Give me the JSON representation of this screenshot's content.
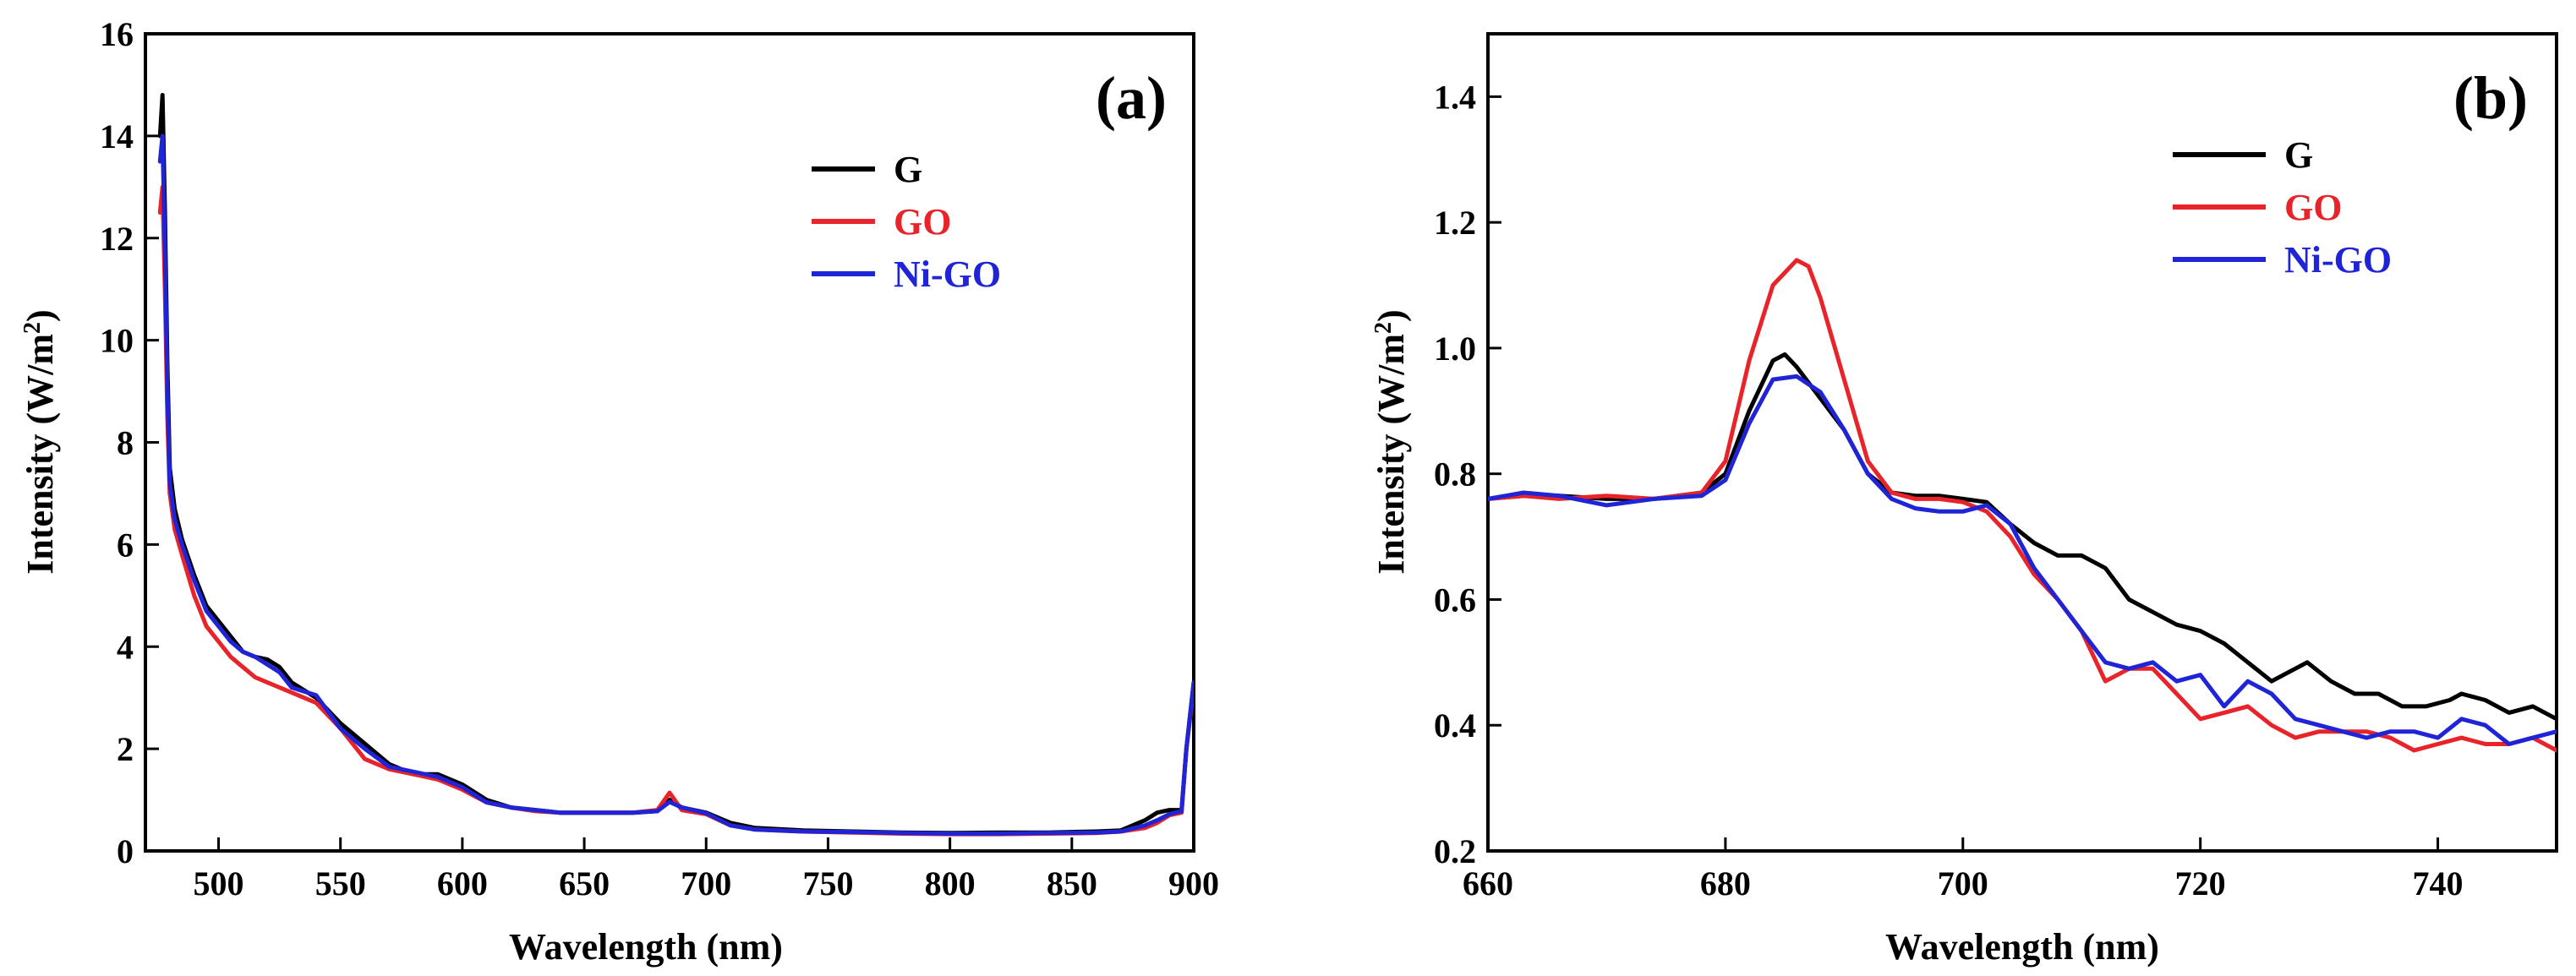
{
  "chart_data": [
    {
      "type": "line",
      "panel_label": "(a)",
      "xlabel": "Wavelength (nm)",
      "ylabel": "Intensity (W/m",
      "ylabel_sup": "2",
      "ylabel_close": ")",
      "xlim": [
        470,
        900
      ],
      "ylim": [
        0,
        16
      ],
      "xticks": [
        "500",
        "550",
        "600",
        "650",
        "700",
        "750",
        "800",
        "850",
        "900"
      ],
      "yticks": [
        "0",
        "2",
        "4",
        "6",
        "8",
        "10",
        "12",
        "14",
        "16"
      ],
      "xtick_values": [
        500,
        550,
        600,
        650,
        700,
        750,
        800,
        850,
        900
      ],
      "ytick_values": [
        0,
        2,
        4,
        6,
        8,
        10,
        12,
        14,
        16
      ],
      "legend_position": "top-right",
      "series": [
        {
          "name": "G",
          "color": "#000000",
          "x": [
            476,
            477,
            478,
            479,
            480,
            482,
            485,
            490,
            495,
            500,
            505,
            510,
            515,
            520,
            525,
            530,
            540,
            550,
            560,
            570,
            580,
            590,
            600,
            610,
            620,
            630,
            640,
            650,
            660,
            670,
            680,
            685,
            690,
            700,
            710,
            720,
            740,
            760,
            780,
            800,
            820,
            840,
            860,
            870,
            880,
            885,
            890,
            895,
            897,
            900
          ],
          "y": [
            14.0,
            14.8,
            12.5,
            9.5,
            7.5,
            6.7,
            6.1,
            5.4,
            4.8,
            4.5,
            4.2,
            3.9,
            3.8,
            3.75,
            3.6,
            3.3,
            3.0,
            2.5,
            2.1,
            1.7,
            1.5,
            1.5,
            1.3,
            1.0,
            0.85,
            0.8,
            0.75,
            0.75,
            0.75,
            0.75,
            0.78,
            1.0,
            0.85,
            0.75,
            0.55,
            0.45,
            0.4,
            0.38,
            0.36,
            0.35,
            0.36,
            0.36,
            0.38,
            0.4,
            0.6,
            0.75,
            0.8,
            0.8,
            2.0,
            3.3
          ]
        },
        {
          "name": "GO",
          "color": "#e8242a",
          "x": [
            476,
            477,
            478,
            479,
            480,
            482,
            485,
            490,
            495,
            500,
            505,
            510,
            515,
            520,
            525,
            530,
            540,
            550,
            560,
            570,
            580,
            590,
            600,
            610,
            620,
            630,
            640,
            650,
            660,
            670,
            680,
            685,
            690,
            700,
            710,
            720,
            740,
            760,
            780,
            800,
            820,
            840,
            860,
            870,
            880,
            885,
            890,
            895,
            897,
            900
          ],
          "y": [
            12.5,
            13.0,
            11.0,
            8.5,
            7.0,
            6.3,
            5.8,
            5.0,
            4.4,
            4.1,
            3.8,
            3.6,
            3.4,
            3.3,
            3.2,
            3.1,
            2.9,
            2.4,
            1.8,
            1.6,
            1.5,
            1.4,
            1.2,
            0.95,
            0.85,
            0.78,
            0.75,
            0.75,
            0.75,
            0.75,
            0.8,
            1.14,
            0.8,
            0.72,
            0.5,
            0.42,
            0.38,
            0.36,
            0.34,
            0.33,
            0.33,
            0.34,
            0.35,
            0.38,
            0.45,
            0.55,
            0.7,
            0.75,
            2.0,
            3.2
          ]
        },
        {
          "name": "Ni-GO",
          "color": "#1f24d6",
          "x": [
            476,
            477,
            478,
            479,
            480,
            482,
            485,
            490,
            495,
            500,
            505,
            510,
            515,
            520,
            525,
            530,
            540,
            550,
            560,
            570,
            580,
            590,
            600,
            610,
            620,
            630,
            640,
            650,
            660,
            670,
            680,
            685,
            690,
            700,
            710,
            720,
            740,
            760,
            780,
            800,
            820,
            840,
            860,
            870,
            880,
            885,
            890,
            895,
            897,
            900
          ],
          "y": [
            13.5,
            14.0,
            11.8,
            9.0,
            7.2,
            6.5,
            6.0,
            5.3,
            4.7,
            4.4,
            4.1,
            3.9,
            3.8,
            3.65,
            3.5,
            3.2,
            3.05,
            2.4,
            2.0,
            1.65,
            1.55,
            1.45,
            1.25,
            0.95,
            0.85,
            0.8,
            0.75,
            0.75,
            0.75,
            0.75,
            0.78,
            0.96,
            0.85,
            0.74,
            0.5,
            0.42,
            0.38,
            0.37,
            0.35,
            0.34,
            0.34,
            0.35,
            0.36,
            0.38,
            0.5,
            0.6,
            0.72,
            0.78,
            2.0,
            3.3
          ]
        }
      ]
    },
    {
      "type": "line",
      "panel_label": "(b)",
      "xlabel": "Wavelength (nm)",
      "ylabel": "Intensity (W/m",
      "ylabel_sup": "2",
      "ylabel_close": ")",
      "xlim": [
        660,
        750
      ],
      "ylim": [
        0.2,
        1.5
      ],
      "xticks": [
        "660",
        "680",
        "700",
        "720",
        "740"
      ],
      "yticks": [
        "0.2",
        "0.4",
        "0.6",
        "0.8",
        "1.0",
        "1.2",
        "1.4"
      ],
      "xtick_values": [
        660,
        680,
        700,
        720,
        740
      ],
      "ytick_values": [
        0.2,
        0.4,
        0.6,
        0.8,
        1.0,
        1.2,
        1.4
      ],
      "legend_position": "top-right",
      "series": [
        {
          "name": "G",
          "color": "#000000",
          "x": [
            660,
            663,
            666,
            670,
            674,
            678,
            680,
            682,
            684,
            685,
            686,
            688,
            690,
            692,
            694,
            696,
            698,
            700,
            702,
            704,
            706,
            708,
            710,
            712,
            714,
            716,
            718,
            720,
            722,
            724,
            726,
            727,
            729,
            731,
            733,
            735,
            737,
            739,
            741,
            742,
            744,
            746,
            748,
            750
          ],
          "y": [
            0.76,
            0.765,
            0.765,
            0.76,
            0.76,
            0.77,
            0.8,
            0.9,
            0.98,
            0.99,
            0.97,
            0.92,
            0.87,
            0.8,
            0.77,
            0.765,
            0.765,
            0.76,
            0.755,
            0.72,
            0.69,
            0.67,
            0.67,
            0.65,
            0.6,
            0.58,
            0.56,
            0.55,
            0.53,
            0.5,
            0.47,
            0.48,
            0.5,
            0.47,
            0.45,
            0.45,
            0.43,
            0.43,
            0.44,
            0.45,
            0.44,
            0.42,
            0.43,
            0.41
          ]
        },
        {
          "name": "GO",
          "color": "#e8242a",
          "x": [
            660,
            663,
            666,
            670,
            674,
            678,
            680,
            682,
            684,
            686,
            687,
            688,
            690,
            692,
            694,
            696,
            698,
            700,
            702,
            704,
            706,
            708,
            710,
            712,
            714,
            716,
            718,
            720,
            722,
            724,
            726,
            728,
            730,
            732,
            734,
            736,
            738,
            740,
            742,
            744,
            746,
            748,
            750
          ],
          "y": [
            0.76,
            0.765,
            0.76,
            0.765,
            0.76,
            0.77,
            0.82,
            0.98,
            1.1,
            1.14,
            1.13,
            1.08,
            0.95,
            0.82,
            0.77,
            0.76,
            0.76,
            0.755,
            0.74,
            0.7,
            0.64,
            0.6,
            0.55,
            0.47,
            0.49,
            0.49,
            0.45,
            0.41,
            0.42,
            0.43,
            0.4,
            0.38,
            0.39,
            0.39,
            0.39,
            0.38,
            0.36,
            0.37,
            0.38,
            0.37,
            0.37,
            0.38,
            0.36
          ]
        },
        {
          "name": "Ni-GO",
          "color": "#1f24d6",
          "x": [
            660,
            663,
            666,
            670,
            674,
            678,
            680,
            682,
            684,
            686,
            688,
            690,
            692,
            694,
            696,
            698,
            700,
            702,
            704,
            706,
            708,
            710,
            712,
            714,
            716,
            718,
            720,
            722,
            724,
            726,
            728,
            730,
            732,
            734,
            736,
            738,
            740,
            742,
            744,
            746,
            748,
            750
          ],
          "y": [
            0.76,
            0.77,
            0.765,
            0.75,
            0.76,
            0.765,
            0.79,
            0.88,
            0.95,
            0.955,
            0.93,
            0.87,
            0.8,
            0.76,
            0.745,
            0.74,
            0.74,
            0.75,
            0.72,
            0.65,
            0.6,
            0.55,
            0.5,
            0.49,
            0.5,
            0.47,
            0.48,
            0.43,
            0.47,
            0.45,
            0.41,
            0.4,
            0.39,
            0.38,
            0.39,
            0.39,
            0.38,
            0.41,
            0.4,
            0.37,
            0.38,
            0.39
          ]
        }
      ]
    }
  ]
}
